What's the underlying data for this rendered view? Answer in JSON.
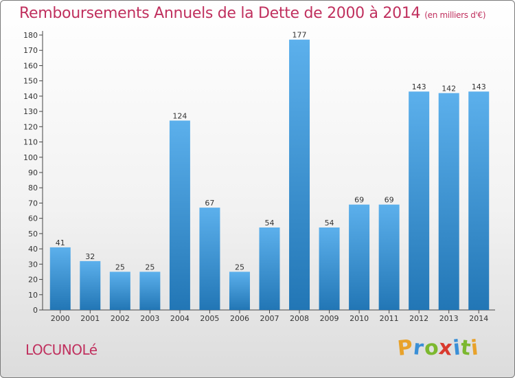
{
  "header": {
    "title": "Remboursements Annuels de la Dette de 2000 à 2014",
    "subtitle": "(en milliers d'€)"
  },
  "footer": {
    "commune": "LOCUNOLé",
    "brand_letters": [
      {
        "ch": "P",
        "color": "#e8a22b"
      },
      {
        "ch": "r",
        "color": "#3a8fd6"
      },
      {
        "ch": "o",
        "color": "#7cb82f"
      },
      {
        "ch": "x",
        "color": "#d93a2e"
      },
      {
        "ch": "i",
        "color": "#3a8fd6"
      },
      {
        "ch": "t",
        "color": "#7cb82f"
      },
      {
        "ch": "i",
        "color": "#e8a22b"
      }
    ]
  },
  "chart_data": {
    "type": "bar",
    "categories": [
      "2000",
      "2001",
      "2002",
      "2003",
      "2004",
      "2005",
      "2006",
      "2007",
      "2008",
      "2009",
      "2010",
      "2011",
      "2012",
      "2013",
      "2014"
    ],
    "values": [
      41,
      32,
      25,
      25,
      124,
      67,
      25,
      54,
      177,
      54,
      69,
      69,
      143,
      142,
      143
    ],
    "title": "Remboursements Annuels de la Dette de 2000 à 2014",
    "subtitle": "(en milliers d'€)",
    "xlabel": "",
    "ylabel": "",
    "ylim": [
      0,
      180
    ],
    "yticks": [
      0,
      10,
      20,
      30,
      40,
      50,
      60,
      70,
      80,
      90,
      100,
      110,
      120,
      130,
      140,
      150,
      160,
      170,
      180
    ],
    "grid": false,
    "legend": "none",
    "colors": {
      "bar_top": "#5cb0ec",
      "bar_bottom": "#2276b5",
      "title": "#c0305e"
    }
  }
}
